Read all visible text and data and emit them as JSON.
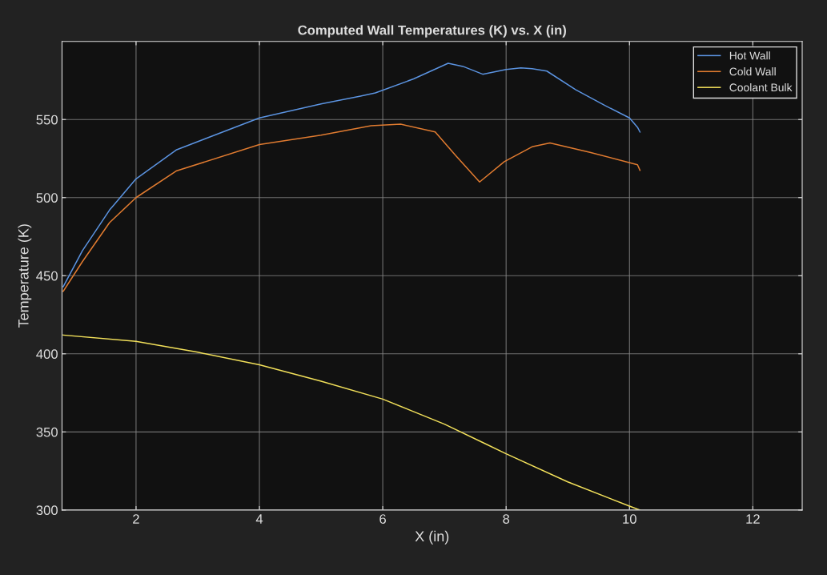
{
  "chart_data": {
    "type": "line",
    "title": "Computed Wall Temperatures (K) vs. X (in)",
    "xlabel": "X (in)",
    "ylabel": "Temperature (K)",
    "xlim": [
      0.8,
      12.8
    ],
    "ylim": [
      300,
      600
    ],
    "xticks": [
      2,
      4,
      6,
      8,
      10,
      12
    ],
    "yticks": [
      300,
      350,
      400,
      450,
      500,
      550
    ],
    "grid": true,
    "legend": "top right",
    "marker": "none",
    "line_style": "solid",
    "series": [
      {
        "name": "Hot Wall",
        "color": "#5b93e0",
        "x": [
          0.82,
          1.13,
          1.57,
          2,
          2.65,
          4,
          5,
          5.64,
          5.88,
          6.5,
          7.06,
          7.3,
          7.62,
          8.0,
          8.24,
          8.42,
          8.66,
          9.13,
          9.6,
          10.0,
          10.13,
          10.17
        ],
        "values": [
          443,
          466,
          492,
          512,
          530.5,
          551,
          560,
          565,
          567,
          576,
          586,
          584,
          579,
          582,
          583,
          582.5,
          581,
          569,
          559,
          551,
          545,
          542
        ]
      },
      {
        "name": "Cold Wall",
        "color": "#e07b30",
        "x": [
          0.82,
          1.13,
          1.57,
          2,
          2.65,
          4,
          5,
          5.81,
          6.29,
          6.85,
          7.18,
          7.57,
          7.97,
          8.42,
          8.71,
          9.36,
          10.13,
          10.17
        ],
        "values": [
          440,
          459,
          484,
          500,
          517,
          534,
          540,
          546,
          547,
          542,
          527,
          510,
          523,
          532.5,
          535,
          529,
          521,
          517.5
        ]
      },
      {
        "name": "Coolant Bulk",
        "color": "#f2e05a",
        "x": [
          0.82,
          2,
          3,
          4,
          5,
          6,
          7,
          7.66,
          8,
          9,
          10,
          10.17
        ],
        "values": [
          412,
          408,
          401,
          393,
          382.5,
          371,
          355,
          342.5,
          336,
          318,
          302.5,
          300
        ]
      }
    ]
  }
}
